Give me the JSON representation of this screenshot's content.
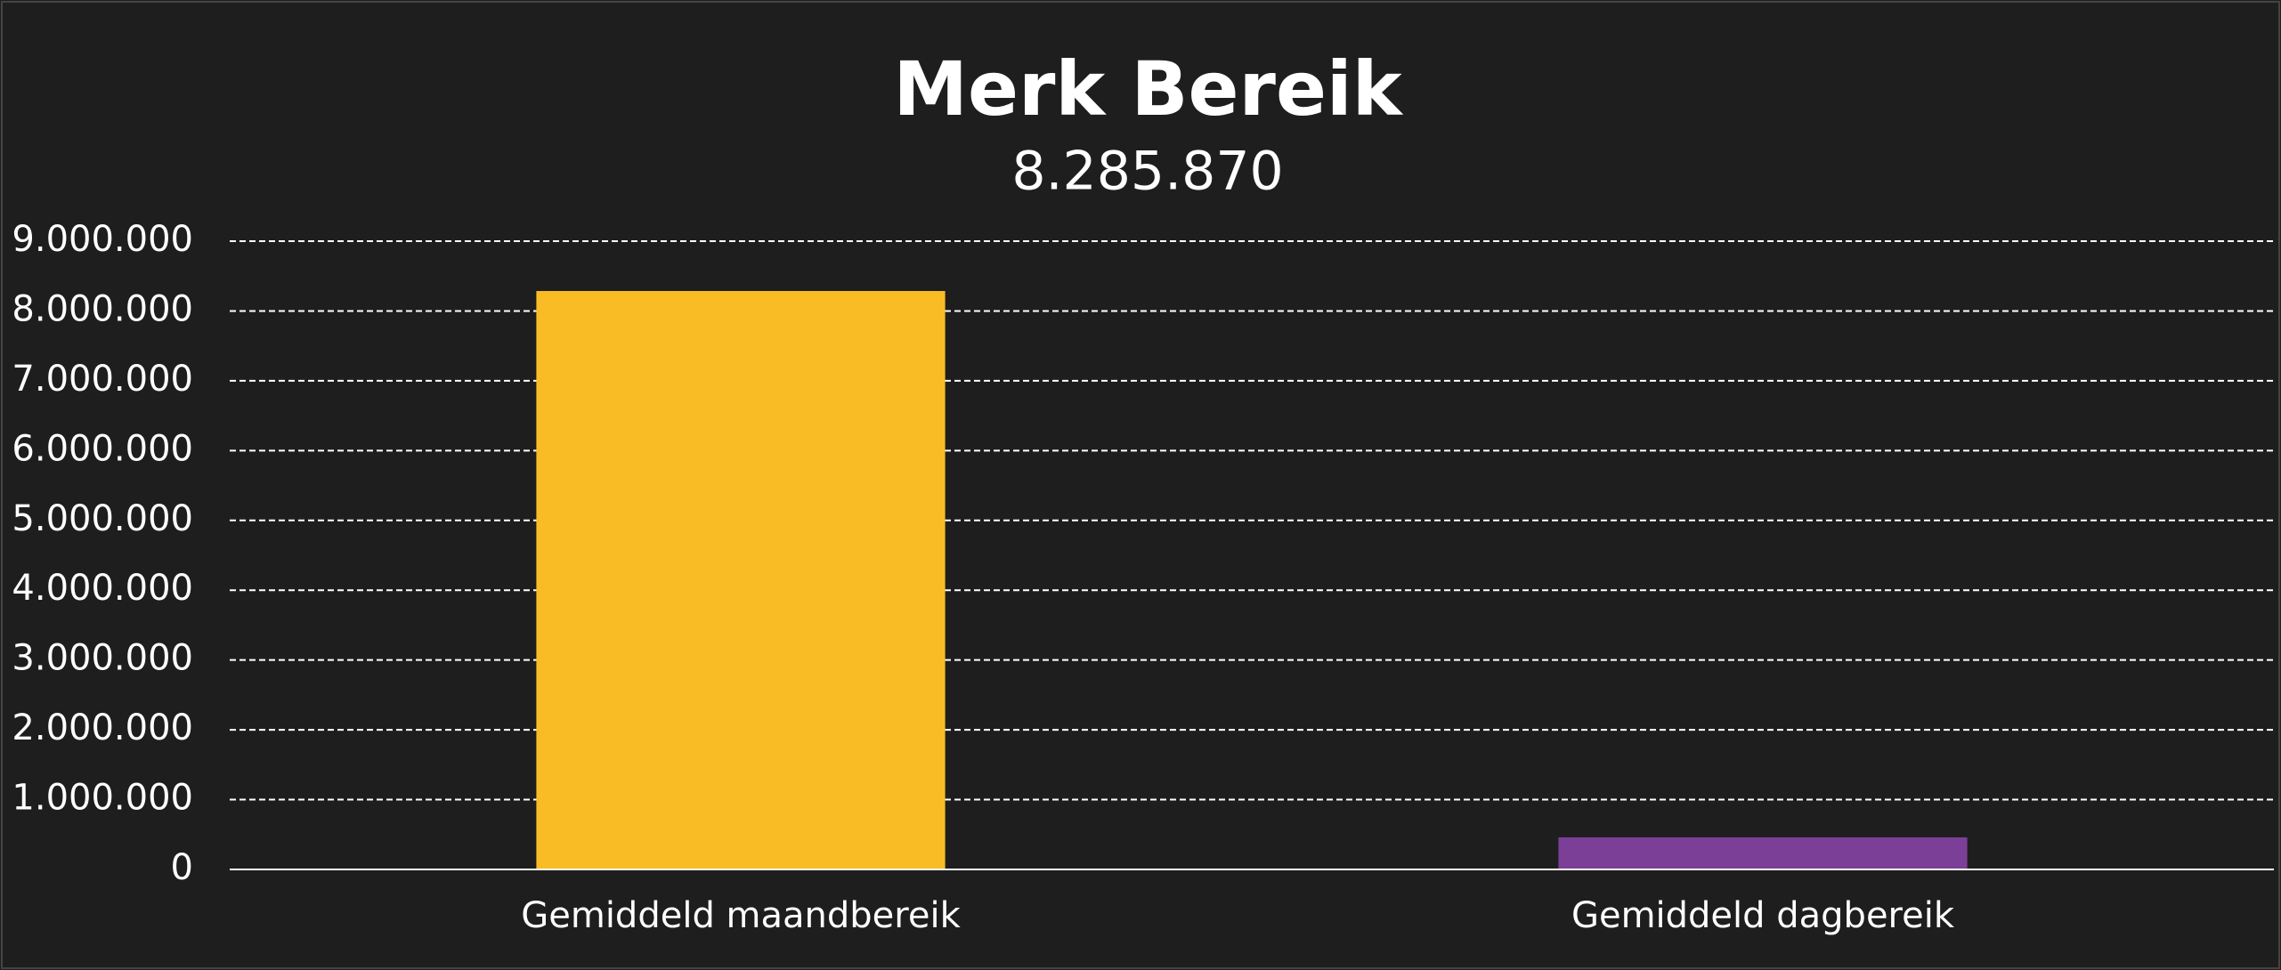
{
  "chart_data": {
    "type": "bar",
    "title": "Merk Bereik",
    "subtitle": "8.285.870",
    "categories": [
      "Gemiddeld maandbereik",
      "Gemiddeld dagbereik"
    ],
    "values": [
      8285870,
      460000
    ],
    "colors": [
      "#f9bc25",
      "#7b3f98"
    ],
    "ylim": [
      0,
      9000000
    ],
    "yticks": [
      0,
      {
        "value": 1000000,
        "label": "1.000.000"
      },
      {
        "value": 2000000,
        "label": "2.000.000"
      },
      {
        "value": 3000000,
        "label": "3.000.000"
      },
      {
        "value": 4000000,
        "label": "4.000.000"
      },
      {
        "value": 5000000,
        "label": "5.000.000"
      },
      {
        "value": 6000000,
        "label": "6.000.000"
      },
      {
        "value": 7000000,
        "label": "7.000.000"
      },
      {
        "value": 8000000,
        "label": "8.000.000"
      },
      {
        "value": 9000000,
        "label": "9.000.000"
      }
    ],
    "grid": true
  }
}
